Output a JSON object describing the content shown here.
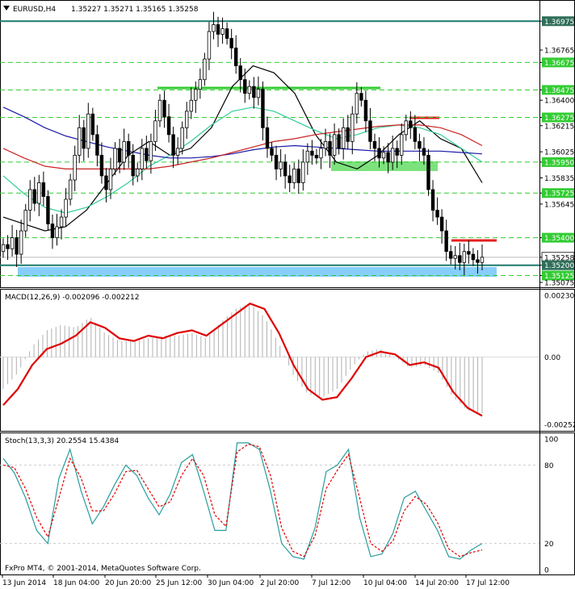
{
  "header": {
    "symbol": "EURUSD,H4",
    "ohlc": "1.35227 1.35271 1.35165 1.35258"
  },
  "copyright": "FxPro MT4, © 2001-2014, MetaQuotes Software Corp.",
  "colors": {
    "bull": "#000000",
    "bear": "#000000",
    "ma_fast": "#000000",
    "ma_teal": "#33cc99",
    "ma_blue": "#1a1aa6",
    "ma_red": "#cc2222",
    "resistance_green": "#33cc33",
    "red_level": "#e61e1e",
    "support_blue": "#87cefa",
    "teal_line": "#1d7a6e",
    "macd_signal": "#e00000",
    "macd_hist": "#b0b0b0",
    "stoch_main": "#2a9d9d",
    "stoch_signal": "#e00000",
    "badge_dark": "#2f6f5a"
  },
  "chart_data": [
    {
      "type": "candlestick",
      "title": "EURUSD,H4",
      "ylim": [
        1.35075,
        1.37
      ],
      "price_labels": [
        "1.36975",
        "1.36765",
        "1.36675",
        "1.36475",
        "1.36400",
        "1.36275",
        "1.36215",
        "1.36025",
        "1.35950",
        "1.35835",
        "1.35725",
        "1.35645",
        "1.35400",
        "1.35258",
        "1.35200",
        "1.35125",
        "1.35075"
      ],
      "highlighted_levels": [
        {
          "value": 1.36975,
          "label": "1.36975",
          "style": "teal"
        },
        {
          "value": 1.36675,
          "label": "1.36675",
          "style": "green-dash"
        },
        {
          "value": 1.36475,
          "label": "1.36475",
          "style": "green-dash"
        },
        {
          "value": 1.36275,
          "label": "1.36275",
          "style": "green-dash"
        },
        {
          "value": 1.3595,
          "label": "1.35950",
          "style": "green-dash"
        },
        {
          "value": 1.35725,
          "label": "1.35725",
          "style": "green-dash"
        },
        {
          "value": 1.354,
          "label": "1.35400",
          "style": "green-dash"
        },
        {
          "value": 1.35258,
          "label": "1.35258",
          "style": "current"
        },
        {
          "value": 1.352,
          "label": "1.35200",
          "style": "teal"
        },
        {
          "value": 1.35125,
          "label": "1.35125",
          "style": "green-dash"
        }
      ],
      "closes": [
        1.3535,
        1.3532,
        1.354,
        1.3528,
        1.3545,
        1.356,
        1.3575,
        1.3565,
        1.358,
        1.357,
        1.355,
        1.354,
        1.3548,
        1.3555,
        1.3568,
        1.3582,
        1.36,
        1.362,
        1.3605,
        1.363,
        1.3615,
        1.36,
        1.3585,
        1.3575,
        1.359,
        1.3605,
        1.3595,
        1.361,
        1.36,
        1.3585,
        1.359,
        1.3605,
        1.3596,
        1.361,
        1.3625,
        1.364,
        1.3628,
        1.3615,
        1.36,
        1.3605,
        1.362,
        1.3632,
        1.364,
        1.3648,
        1.3655,
        1.367,
        1.369,
        1.3695,
        1.3688,
        1.3692,
        1.3685,
        1.3678,
        1.3665,
        1.3655,
        1.3645,
        1.365,
        1.3642,
        1.3648,
        1.362,
        1.3605,
        1.36,
        1.359,
        1.3595,
        1.3585,
        1.358,
        1.359,
        1.358,
        1.3595,
        1.3603,
        1.36,
        1.3598,
        1.3605,
        1.361,
        1.36,
        1.3615,
        1.3605,
        1.362,
        1.361,
        1.363,
        1.3645,
        1.364,
        1.3625,
        1.361,
        1.3605,
        1.3598,
        1.3602,
        1.3595,
        1.3605,
        1.36,
        1.3615,
        1.3625,
        1.362,
        1.361,
        1.3605,
        1.36,
        1.3575,
        1.356,
        1.3555,
        1.3545,
        1.353,
        1.3525,
        1.3527,
        1.3522,
        1.353,
        1.3528,
        1.3524,
        1.3522,
        1.35258
      ],
      "moving_averages": [
        {
          "name": "ma_fast",
          "values": [
            1.3555,
            1.355,
            1.3545,
            1.3548,
            1.356,
            1.358,
            1.36,
            1.361,
            1.36,
            1.3605,
            1.362,
            1.365,
            1.3665,
            1.366,
            1.3645,
            1.3615,
            1.3595,
            1.359,
            1.36,
            1.3615,
            1.3625,
            1.3612,
            1.3605,
            1.358
          ]
        },
        {
          "name": "ma_teal",
          "values": [
            1.3585,
            1.3572,
            1.3562,
            1.3558,
            1.3562,
            1.357,
            1.358,
            1.3592,
            1.36,
            1.361,
            1.3622,
            1.3632,
            1.3635,
            1.3632,
            1.3625,
            1.3618,
            1.3612,
            1.3615,
            1.362,
            1.3622,
            1.362,
            1.3615,
            1.3605,
            1.3595
          ]
        },
        {
          "name": "ma_blue",
          "values": [
            1.3635,
            1.3628,
            1.362,
            1.3614,
            1.361,
            1.3606,
            1.3603,
            1.36,
            1.3598,
            1.3598,
            1.3599,
            1.3601,
            1.3604,
            1.3606,
            1.3607,
            1.3606,
            1.3605,
            1.3604,
            1.3603,
            1.3603,
            1.3603,
            1.3603,
            1.3602,
            1.3601
          ]
        },
        {
          "name": "ma_red",
          "values": [
            1.3605,
            1.3598,
            1.3592,
            1.359,
            1.359,
            1.359,
            1.359,
            1.359,
            1.3592,
            1.3595,
            1.3598,
            1.3602,
            1.3606,
            1.361,
            1.3612,
            1.3615,
            1.3617,
            1.3619,
            1.3621,
            1.3622,
            1.3622,
            1.362,
            1.3615,
            1.3607
          ]
        }
      ]
    },
    {
      "type": "line",
      "title": "MACD(12,26,9) -0.002096 -0.002212",
      "ylim": [
        -0.00252,
        0.002309
      ],
      "tick_labels": [
        "0.002309",
        "0.00",
        "-0.002521"
      ],
      "signal": [
        -0.0018,
        -0.0012,
        -0.0003,
        0.0003,
        0.0005,
        0.0008,
        0.0013,
        0.0011,
        0.0007,
        0.0006,
        0.0008,
        0.0007,
        0.0009,
        0.001,
        0.0008,
        0.0012,
        0.0016,
        0.002,
        0.0018,
        0.0009,
        -0.0003,
        -0.0012,
        -0.0016,
        -0.0015,
        -0.0008,
        0.0,
        0.0002,
        0.0001,
        -0.0003,
        -0.0002,
        -0.0004,
        -0.0013,
        -0.0019,
        -0.0022
      ],
      "histogram": [
        -0.0012,
        -0.0006,
        0.0004,
        0.001,
        0.0012,
        0.0011,
        0.0015,
        0.0009,
        0.0006,
        0.0006,
        0.0007,
        0.0008,
        0.0008,
        0.0009,
        0.0007,
        0.0013,
        0.0018,
        0.002,
        0.0015,
        0.0005,
        -0.0007,
        -0.0014,
        -0.0015,
        -0.0012,
        -0.0004,
        0.0002,
        0.0003,
        0.0,
        -0.0004,
        -0.0003,
        -0.0006,
        -0.0015,
        -0.002,
        -0.0021
      ]
    },
    {
      "type": "line",
      "title": "Stoch(13,3,3) 20.2554 15.4384",
      "ylim": [
        0,
        100
      ],
      "tick_labels": [
        "100",
        "80",
        "20",
        "0"
      ],
      "main": [
        85,
        74,
        55,
        30,
        20,
        70,
        92,
        60,
        35,
        48,
        65,
        80,
        72,
        55,
        42,
        58,
        82,
        88,
        60,
        30,
        30,
        97,
        97,
        92,
        60,
        20,
        10,
        8,
        32,
        75,
        80,
        92,
        40,
        10,
        12,
        28,
        55,
        60,
        45,
        30,
        10,
        8,
        15,
        20
      ],
      "signal": [
        80,
        78,
        62,
        40,
        25,
        55,
        85,
        70,
        45,
        45,
        58,
        75,
        76,
        62,
        48,
        52,
        72,
        85,
        72,
        42,
        33,
        90,
        96,
        94,
        72,
        32,
        14,
        10,
        26,
        62,
        76,
        88,
        55,
        20,
        14,
        22,
        45,
        56,
        50,
        36,
        16,
        10,
        13,
        15
      ]
    }
  ],
  "time_axis": [
    "13 Jun 2014",
    "18 Jun 04:00",
    "20 Jun 20:00",
    "25 Jun 12:00",
    "30 Jun 04:00",
    "2 Jul 20:00",
    "7 Jul 12:00",
    "10 Jul 04:00",
    "14 Jul 20:00",
    "17 Jul 12:00"
  ]
}
